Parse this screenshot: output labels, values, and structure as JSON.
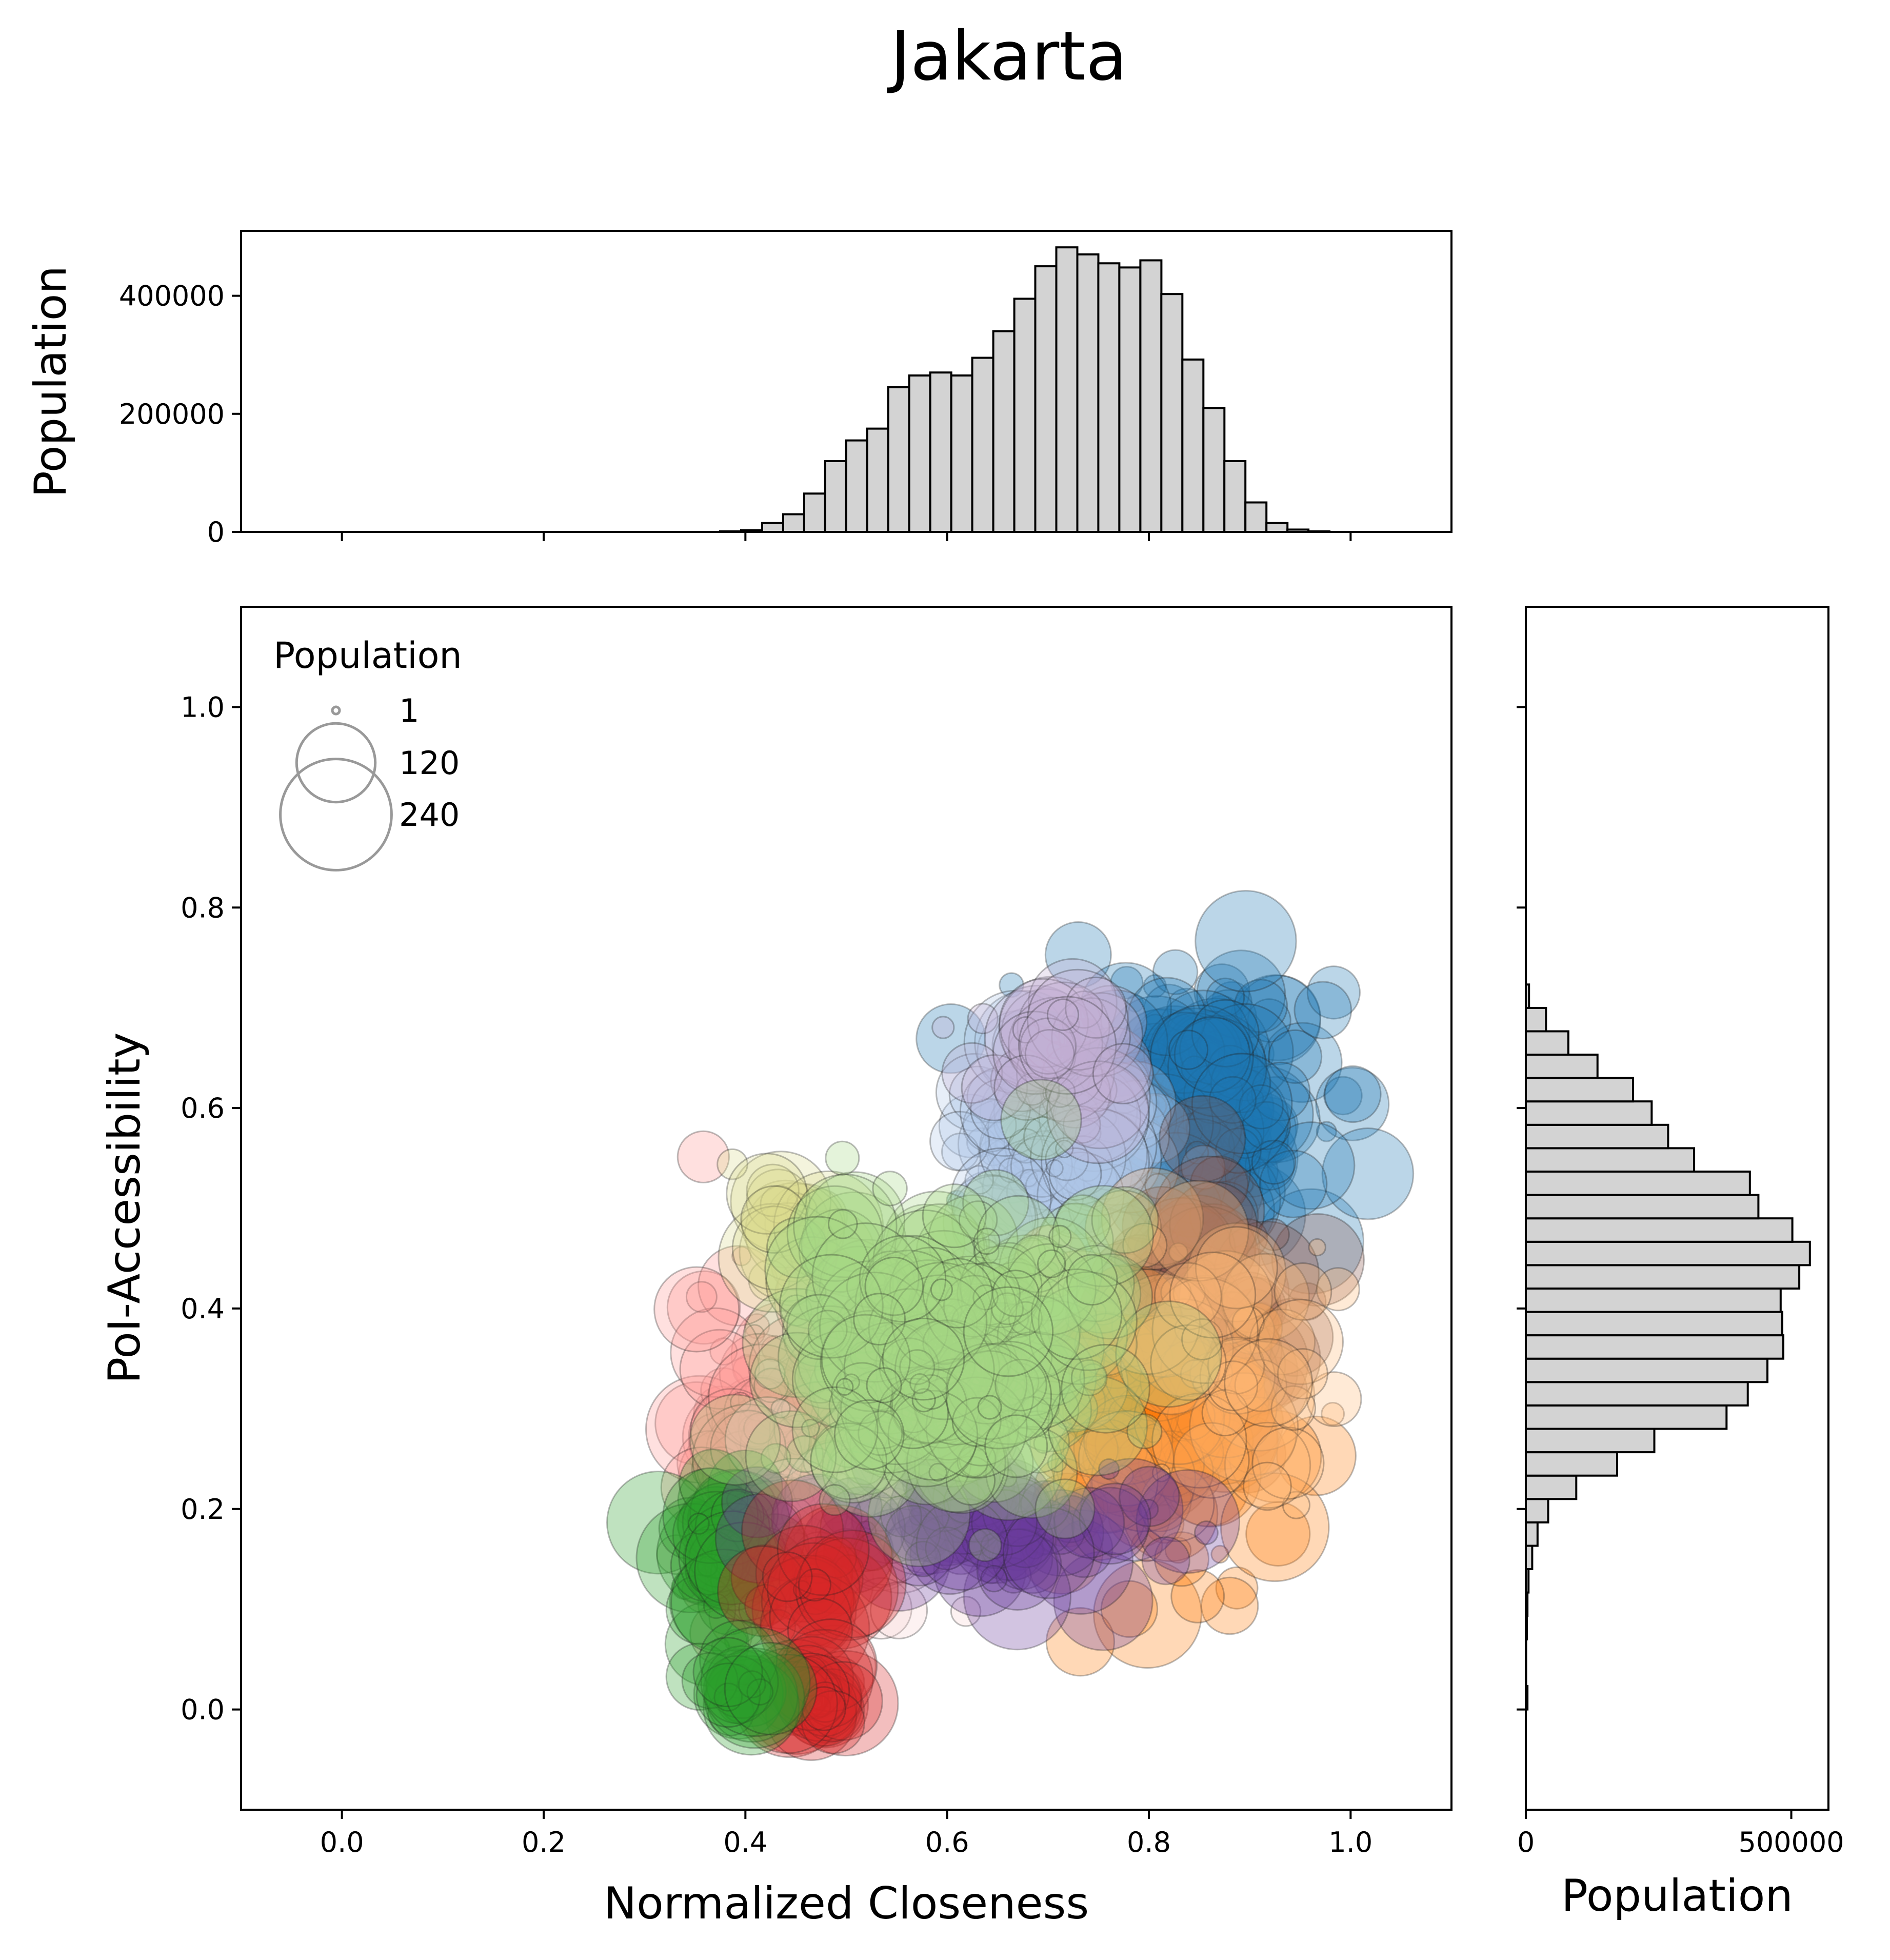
{
  "chart_data": {
    "type": "scatter",
    "title": "Jakarta",
    "scatter": {
      "xlabel": "Normalized Closeness",
      "ylabel": "PoI-Accessibility",
      "xlim": [
        -0.1,
        1.1
      ],
      "ylim": [
        -0.1,
        1.1
      ],
      "xticks": [
        "0.0",
        "0.2",
        "0.4",
        "0.6",
        "0.8",
        "1.0"
      ],
      "yticks": [
        "0.0",
        "0.2",
        "0.4",
        "0.6",
        "0.8",
        "1.0"
      ],
      "legend": {
        "title": "Population",
        "placement": "upper-left",
        "entries": [
          {
            "label": "1",
            "size": 1
          },
          {
            "label": "120",
            "size": 120
          },
          {
            "label": "240",
            "size": 240
          }
        ]
      },
      "clusters": [
        {
          "color": "#1f77b4",
          "cx": 0.83,
          "cy": 0.6,
          "sx": 0.065,
          "sy": 0.06,
          "n": 240
        },
        {
          "color": "#aec7e8",
          "cx": 0.69,
          "cy": 0.56,
          "sx": 0.05,
          "sy": 0.05,
          "n": 110
        },
        {
          "color": "#c5b0d5",
          "cx": 0.71,
          "cy": 0.65,
          "sx": 0.04,
          "sy": 0.03,
          "n": 40
        },
        {
          "color": "#8c564b",
          "cx": 0.84,
          "cy": 0.38,
          "sx": 0.05,
          "sy": 0.06,
          "n": 110
        },
        {
          "color": "#ff7f0e",
          "cx": 0.8,
          "cy": 0.27,
          "sx": 0.06,
          "sy": 0.06,
          "n": 110
        },
        {
          "color": "#ffbb78",
          "cx": 0.86,
          "cy": 0.35,
          "sx": 0.07,
          "sy": 0.08,
          "n": 60
        },
        {
          "color": "#ff9896",
          "cx": 0.42,
          "cy": 0.27,
          "sx": 0.04,
          "sy": 0.08,
          "n": 110
        },
        {
          "color": "#f7d3d3",
          "cx": 0.52,
          "cy": 0.2,
          "sx": 0.06,
          "sy": 0.06,
          "n": 50
        },
        {
          "color": "#dbdb8d",
          "cx": 0.45,
          "cy": 0.47,
          "sx": 0.03,
          "sy": 0.03,
          "n": 25
        },
        {
          "color": "#2ca02c",
          "cx": 0.38,
          "cy": 0.15,
          "sx": 0.02,
          "sy": 0.04,
          "n": 60
        },
        {
          "color": "#6a3d9a",
          "cx": 0.65,
          "cy": 0.18,
          "sx": 0.1,
          "sy": 0.03,
          "n": 90
        },
        {
          "color": "#d62728",
          "cx": 0.47,
          "cy": 0.13,
          "sx": 0.02,
          "sy": 0.02,
          "n": 25
        },
        {
          "color": "#a6d785",
          "cx": 0.6,
          "cy": 0.35,
          "sx": 0.07,
          "sy": 0.07,
          "n": 300
        },
        {
          "color": "#d62728",
          "cx": 0.47,
          "cy": 0.01,
          "sx": 0.015,
          "sy": 0.012,
          "n": 45
        },
        {
          "color": "#2ca02c",
          "cx": 0.4,
          "cy": 0.02,
          "sx": 0.015,
          "sy": 0.012,
          "n": 20
        }
      ]
    },
    "top_histogram": {
      "ylabel": "Population",
      "ylim": [
        0,
        510000
      ],
      "yticks": [
        "0",
        "200000",
        "400000"
      ],
      "bin_start": 0.0,
      "bin_width": 0.02083,
      "values": [
        0,
        0,
        0,
        0,
        0,
        0,
        0,
        0,
        0,
        0,
        0,
        0,
        0,
        0,
        0,
        0,
        0,
        0,
        1000,
        3000,
        15000,
        30000,
        65000,
        120000,
        155000,
        175000,
        245000,
        265000,
        270000,
        265000,
        295000,
        340000,
        395000,
        450000,
        482000,
        470000,
        455000,
        448000,
        460000,
        403000,
        292000,
        210000,
        120000,
        50000,
        15000,
        4000,
        1000,
        0
      ]
    },
    "right_histogram": {
      "xlabel": "Population",
      "xlim": [
        0,
        570000
      ],
      "xticks": [
        "0",
        "500000"
      ],
      "bin_start": 0.0,
      "bin_width": 0.02333,
      "values": [
        3000,
        500,
        500,
        2000,
        3000,
        5000,
        12000,
        22000,
        42000,
        95000,
        172000,
        242000,
        378000,
        418000,
        455000,
        485000,
        483000,
        480000,
        515000,
        535000,
        502000,
        438000,
        422000,
        317000,
        268000,
        237000,
        202000,
        135000,
        80000,
        38000,
        6000
      ]
    }
  }
}
